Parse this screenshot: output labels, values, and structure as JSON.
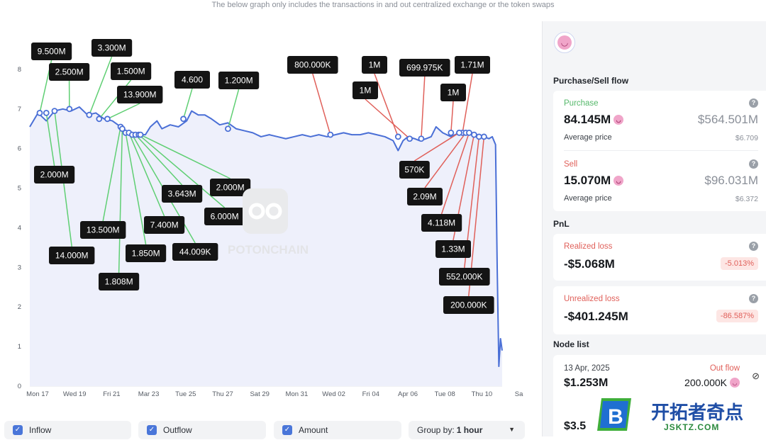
{
  "subtitle": "The below graph only includes the transactions in and out centralized exchange or the token swaps",
  "chart_data": {
    "type": "line",
    "ylim": [
      0,
      8.5
    ],
    "yticks": [
      "0",
      "1",
      "2",
      "3",
      "4",
      "5",
      "6",
      "7",
      "8"
    ],
    "xticks": [
      "Mon 17",
      "Wed 19",
      "Fri 21",
      "Mar 23",
      "Tue 25",
      "Thu 27",
      "Sat 29",
      "Mon 31",
      "Wed 02",
      "Fri 04",
      "Apr 06",
      "Tue 08",
      "Thu 10",
      "Sa"
    ],
    "series_points": [
      [
        0,
        6.55
      ],
      [
        0.5,
        6.9
      ],
      [
        1,
        6.7
      ],
      [
        1.5,
        6.95
      ],
      [
        2,
        7.0
      ],
      [
        2.5,
        6.95
      ],
      [
        3,
        7.05
      ],
      [
        3.5,
        6.85
      ],
      [
        4,
        6.9
      ],
      [
        4.5,
        6.75
      ],
      [
        5,
        6.7
      ],
      [
        5.5,
        6.55
      ],
      [
        6,
        6.4
      ],
      [
        6.5,
        6.35
      ],
      [
        7,
        6.35
      ],
      [
        7.3,
        6.55
      ],
      [
        7.7,
        6.7
      ],
      [
        8,
        6.5
      ],
      [
        8.5,
        6.6
      ],
      [
        9,
        6.55
      ],
      [
        9.5,
        6.7
      ],
      [
        9.8,
        6.95
      ],
      [
        10.2,
        6.85
      ],
      [
        10.6,
        6.85
      ],
      [
        11,
        6.75
      ],
      [
        11.5,
        6.6
      ],
      [
        12,
        6.65
      ],
      [
        12.5,
        6.5
      ],
      [
        13,
        6.45
      ],
      [
        13.5,
        6.4
      ],
      [
        14,
        6.3
      ],
      [
        14.5,
        6.35
      ],
      [
        15,
        6.3
      ],
      [
        15.5,
        6.25
      ],
      [
        16,
        6.3
      ],
      [
        16.5,
        6.35
      ],
      [
        17,
        6.3
      ],
      [
        17.5,
        6.35
      ],
      [
        18,
        6.3
      ],
      [
        18.5,
        6.35
      ],
      [
        19,
        6.4
      ],
      [
        19.5,
        6.35
      ],
      [
        20,
        6.35
      ],
      [
        20.5,
        6.4
      ],
      [
        21,
        6.35
      ],
      [
        21.5,
        6.3
      ],
      [
        22,
        6.2
      ],
      [
        22.3,
        5.95
      ],
      [
        22.6,
        6.2
      ],
      [
        22.9,
        6.3
      ],
      [
        23.3,
        6.25
      ],
      [
        23.6,
        6.2
      ],
      [
        24,
        6.25
      ],
      [
        24.3,
        6.3
      ],
      [
        24.6,
        6.55
      ],
      [
        25,
        6.4
      ],
      [
        25.5,
        6.3
      ],
      [
        26,
        6.4
      ],
      [
        26.5,
        6.4
      ],
      [
        27,
        6.35
      ],
      [
        27.5,
        6.3
      ],
      [
        27.8,
        6.25
      ],
      [
        28,
        6.3
      ],
      [
        28.2,
        6.1
      ],
      [
        28.3,
        3.0
      ],
      [
        28.4,
        0.5
      ],
      [
        28.5,
        1.2
      ],
      [
        28.6,
        0.9
      ]
    ],
    "markers": [
      {
        "label": "9.500M",
        "x": 0.6,
        "y": 6.9
      },
      {
        "label": "2.500M",
        "x": 2.4,
        "y": 7.0
      },
      {
        "label": "3.300M",
        "x": 3.6,
        "y": 6.85
      },
      {
        "label": "1.500M",
        "x": 4.2,
        "y": 6.75
      },
      {
        "label": "13.900M",
        "x": 4.7,
        "y": 6.75
      },
      {
        "label": "4.600",
        "x": 9.3,
        "y": 6.75
      },
      {
        "label": "1.200M",
        "x": 12.0,
        "y": 6.5
      },
      {
        "label": "800.000K",
        "x": 18.2,
        "y": 6.35
      },
      {
        "label": "1M",
        "x": 22.3,
        "y": 6.3
      },
      {
        "label": "1M",
        "x": 23.0,
        "y": 6.25
      },
      {
        "label": "699.975K",
        "x": 23.7,
        "y": 6.25
      },
      {
        "label": "1M",
        "x": 25.5,
        "y": 6.4
      },
      {
        "label": "1.71M",
        "x": 26.2,
        "y": 6.4
      },
      {
        "label": "2.000M",
        "x": 1.0,
        "y": 6.9
      },
      {
        "label": "14.000M",
        "x": 1.5,
        "y": 6.95
      },
      {
        "label": "13.500M",
        "x": 5.5,
        "y": 6.55
      },
      {
        "label": "1.808M",
        "x": 5.6,
        "y": 6.5
      },
      {
        "label": "1.850M",
        "x": 5.8,
        "y": 6.4
      },
      {
        "label": "7.400M",
        "x": 6.0,
        "y": 6.4
      },
      {
        "label": "44.009K",
        "x": 6.2,
        "y": 6.35
      },
      {
        "label": "3.643M",
        "x": 6.4,
        "y": 6.35
      },
      {
        "label": "6.000M",
        "x": 6.6,
        "y": 6.35
      },
      {
        "label": "2.000M",
        "x": 6.7,
        "y": 6.35
      },
      {
        "label": "570K",
        "x": 26.0,
        "y": 6.4
      },
      {
        "label": "2.09M",
        "x": 26.4,
        "y": 6.4
      },
      {
        "label": "4.118M",
        "x": 26.6,
        "y": 6.4
      },
      {
        "label": "1.33M",
        "x": 26.9,
        "y": 6.35
      },
      {
        "label": "552.000K",
        "x": 27.2,
        "y": 6.3
      },
      {
        "label": "200.000K",
        "x": 27.5,
        "y": 6.3
      }
    ]
  },
  "watermark_text": "POTONCHAIN",
  "controls": {
    "inflow": "Inflow",
    "outflow": "Outflow",
    "amount": "Amount",
    "groupby_label": "Group by:",
    "groupby_value": "1 hour"
  },
  "panel": {
    "flow_title": "Purchase/Sell flow",
    "purchase": {
      "label": "Purchase",
      "amount": "84.145M",
      "usd": "$564.501M",
      "avg_label": "Average price",
      "avg_value": "$6.709"
    },
    "sell": {
      "label": "Sell",
      "amount": "15.070M",
      "usd": "$96.031M",
      "avg_label": "Average price",
      "avg_value": "$6.372"
    },
    "pnl_title": "PnL",
    "realized": {
      "label": "Realized loss",
      "value": "-$5.068M",
      "pct": "-5.013%"
    },
    "unrealized": {
      "label": "Unrealized loss",
      "value": "-$401.245M",
      "pct": "-86.587%"
    },
    "node_title": "Node list",
    "node": {
      "date": "13 Apr, 2025",
      "flow_label": "Out flow",
      "usd": "$1.253M",
      "amount": "200.000K",
      "next_usd": "$3.5"
    }
  },
  "site_watermark": {
    "cn": "开拓者奇点",
    "url": "JSKTZ.COM"
  },
  "colors": {
    "line": "#4a6fd6",
    "fill": "#eef0fb",
    "green_leader": "#5fcf73",
    "red_leader": "#e0605a",
    "accent_pink": "#f0a5c9"
  }
}
